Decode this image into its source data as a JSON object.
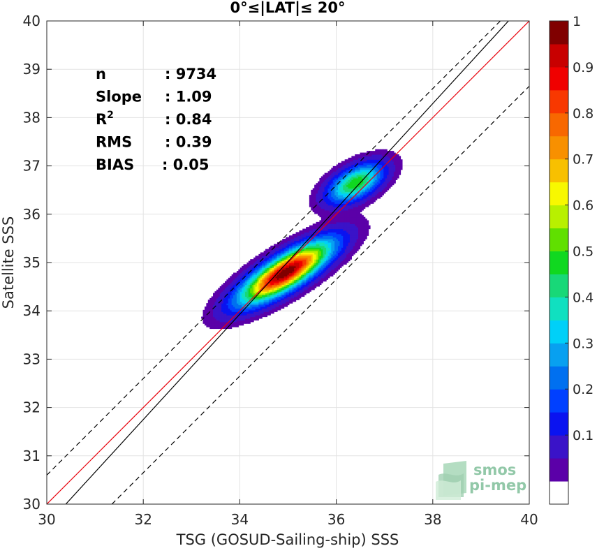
{
  "chart_data": {
    "type": "heatmap",
    "title": "0°≤|LAT|≤ 20°",
    "xlabel": "TSG (GOSUD-Sailing-ship) SSS",
    "ylabel": "Satellite SSS",
    "xlim": [
      30,
      40
    ],
    "ylim": [
      30,
      40
    ],
    "xticks": [
      "30",
      "32",
      "34",
      "36",
      "38",
      "40"
    ],
    "yticks": [
      "30",
      "31",
      "32",
      "33",
      "34",
      "35",
      "36",
      "37",
      "38",
      "39",
      "40"
    ],
    "grid": true,
    "stats": [
      {
        "key": "n",
        "value": ": 9734"
      },
      {
        "key": "Slope",
        "value": ": 1.09"
      },
      {
        "key": "R",
        "sup": "2",
        "value": ": 0.84"
      },
      {
        "key": "RMS",
        "value": ": 0.39"
      },
      {
        "key": "BIAS",
        "value": ": 0.05"
      }
    ],
    "lines": [
      {
        "name": "identity",
        "color": "#e8000b",
        "style": "solid",
        "slope": 1,
        "intercept": 0
      },
      {
        "name": "regression",
        "color": "#000000",
        "style": "solid",
        "slope": 1.09,
        "intercept": -3.13
      },
      {
        "name": "upper-bound",
        "color": "#000000",
        "style": "dashed",
        "slope": 1,
        "intercept": 0.6
      },
      {
        "name": "lower-bound",
        "color": "#000000",
        "style": "dashed",
        "slope": 1,
        "intercept": -1.35
      }
    ],
    "density_clusters": [
      {
        "center": [
          34.95,
          34.8
        ],
        "peak": 1.0,
        "sx": 0.62,
        "sy": 0.42,
        "rho": 0.8
      },
      {
        "center": [
          36.4,
          36.65
        ],
        "peak": 0.5,
        "sx": 0.38,
        "sy": 0.27,
        "rho": 0.55
      }
    ],
    "colorbar": {
      "range": [
        0,
        1
      ],
      "ticks": [
        "0.1",
        "0.2",
        "0.3",
        "0.4",
        "0.5",
        "0.6",
        "0.7",
        "0.8",
        "0.9",
        "1"
      ],
      "levels": 20,
      "colors": [
        "#ffffff",
        "#5b00a8",
        "#3a13c8",
        "#0a13f0",
        "#0040ff",
        "#0070f0",
        "#08a0f0",
        "#00d0f8",
        "#10e0c0",
        "#18d878",
        "#10d820",
        "#60e000",
        "#b8f000",
        "#f8f800",
        "#f8c000",
        "#f89000",
        "#f86800",
        "#f83800",
        "#f00000",
        "#c80000",
        "#800000"
      ]
    },
    "logo": {
      "line1": "smos",
      "line2": "pi-mep"
    }
  }
}
